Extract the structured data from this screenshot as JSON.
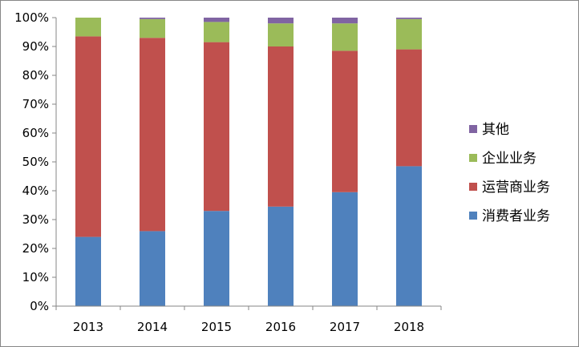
{
  "chart_data": {
    "type": "bar",
    "stacked": true,
    "percent": true,
    "categories": [
      "2013",
      "2014",
      "2015",
      "2016",
      "2017",
      "2018"
    ],
    "series": [
      {
        "name": "消费者业务",
        "color": "#4F81BD",
        "values": [
          24,
          26,
          33,
          34.5,
          39.5,
          48.5
        ]
      },
      {
        "name": "运营商业务",
        "color": "#C0504D",
        "values": [
          69.5,
          67,
          58.5,
          55.5,
          49,
          40.5
        ]
      },
      {
        "name": "企业业务",
        "color": "#9BBB59",
        "values": [
          6.5,
          6.5,
          7,
          8,
          9.5,
          10.5
        ]
      },
      {
        "name": "其他",
        "color": "#8064A2",
        "values": [
          0,
          0.5,
          1.5,
          2,
          2,
          0.5
        ]
      }
    ],
    "yticks": [
      "0%",
      "10%",
      "20%",
      "30%",
      "40%",
      "50%",
      "60%",
      "70%",
      "80%",
      "90%",
      "100%"
    ],
    "ylim": [
      0,
      100
    ],
    "grid": false,
    "legend_position": "right"
  }
}
